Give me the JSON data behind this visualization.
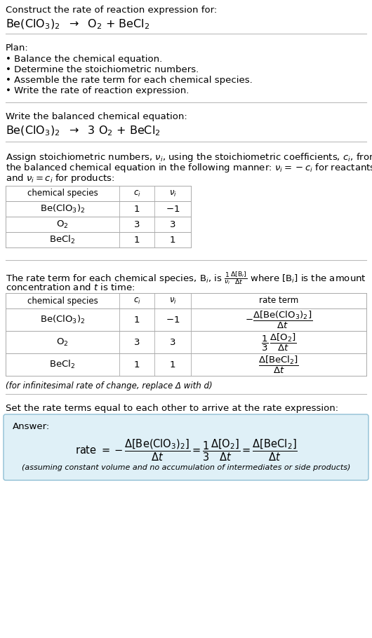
{
  "bg_color": "#ffffff",
  "title_line1": "Construct the rate of reaction expression for:",
  "plan_header": "Plan:",
  "plan_items": [
    "• Balance the chemical equation.",
    "• Determine the stoichiometric numbers.",
    "• Assemble the rate term for each chemical species.",
    "• Write the rate of reaction expression."
  ],
  "balanced_header": "Write the balanced chemical equation:",
  "set_equal_text": "Set the rate terms equal to each other to arrive at the rate expression:",
  "answer_label": "Answer:",
  "footnote": "(assuming constant volume and no accumulation of intermediates or side products)",
  "infinitesimal_note": "(for infinitesimal rate of change, replace Δ with d)",
  "answer_bg": "#dff0f7",
  "answer_border": "#90bfd4",
  "divider_color": "#bbbbbb",
  "table_border": "#aaaaaa",
  "table_header_bg": "#ffffff",
  "table_row_bg": "#ffffff"
}
